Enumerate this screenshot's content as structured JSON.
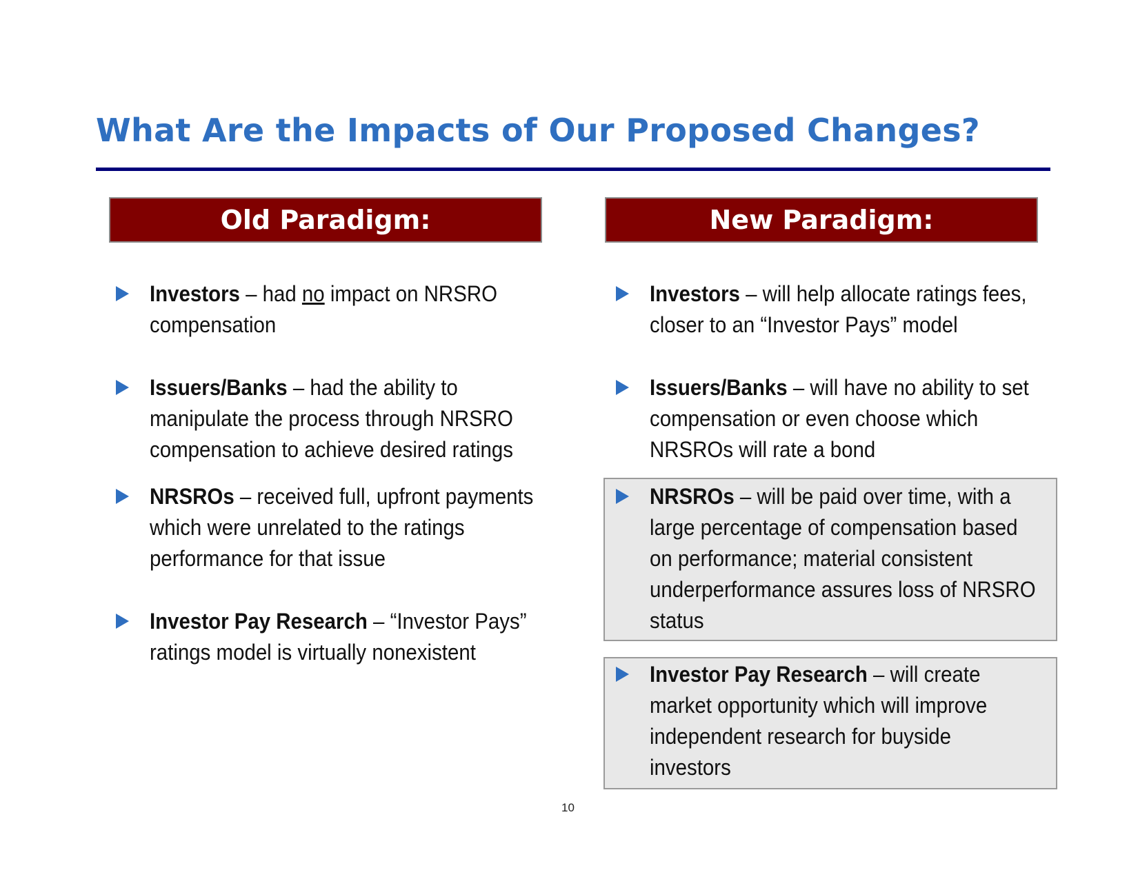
{
  "slide": {
    "title": "What Are the Impacts of Our Proposed Changes?",
    "page_number": "10"
  },
  "old_paradigm": {
    "header": "Old Paradigm:",
    "items": [
      {
        "lead": "Investors",
        "pre": " – had ",
        "underlined": "no",
        "post": " impact on NRSRO compensation"
      },
      {
        "lead": "Issuers/Banks",
        "rest": " – had the ability to manipulate the process through NRSRO compensation to achieve desired ratings"
      },
      {
        "lead": "NRSROs",
        "rest": " – received full, upfront payments which were unrelated to the ratings performance for that issue"
      },
      {
        "lead": "Investor Pay Research",
        "rest": " – “Investor Pays” ratings model is virtually nonexistent"
      }
    ]
  },
  "new_paradigm": {
    "header": "New Paradigm:",
    "items": [
      {
        "lead": "Investors",
        "rest": " – will help allocate ratings fees, closer to an “Investor Pays” model"
      },
      {
        "lead": "Issuers/Banks",
        "rest": " – will have no ability to set compensation or even choose which NRSROs will rate a bond"
      },
      {
        "lead": "NRSROs",
        "rest": " – will be paid over time, with a large percentage of compensation based on performance; material consistent underperformance assures loss of NRSRO status"
      },
      {
        "lead": "Investor Pay Research",
        "rest": " – will create market opportunity which will improve independent research for buyside investors"
      }
    ]
  },
  "colors": {
    "title": "#2f6fc0",
    "rule": "#00007a",
    "header_bg": "#800000",
    "bullet_arrow": "#2f6fc0",
    "highlight_bg": "#e8e8e8"
  },
  "icons": {
    "bullet": "triangle-right-icon"
  }
}
